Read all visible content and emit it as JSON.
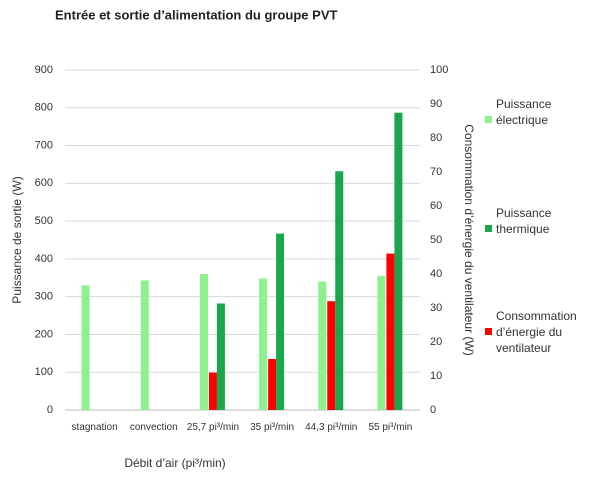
{
  "chart_data": {
    "type": "bar",
    "title": "Entrée et sortie d’alimentation du groupe PVT",
    "x_label": "Débit d’air (pi³/min)",
    "y_label": "Puissance de sortie (W)",
    "y2_label": "Consommation d’énergie du ventilateur (W)",
    "categories": [
      "stagnation",
      "convection",
      "25,7 pi³/min",
      "35 pi³/min",
      "44,3 pi³/min",
      "55 pi³/min"
    ],
    "series": [
      {
        "name": "Puissance électrique",
        "color": "#8ef08e",
        "values": [
          330,
          343,
          360,
          348,
          340,
          355
        ]
      },
      {
        "name": "Consommation d’énergie du ventilateur",
        "color": "#ff0000",
        "axis": "y2",
        "values": [
          null,
          null,
          11,
          15,
          32,
          46
        ]
      },
      {
        "name": "Puissance thermique",
        "color": "#1aa64a",
        "values": [
          null,
          null,
          282,
          467,
          632,
          787
        ]
      }
    ],
    "ylim": [
      0,
      900
    ],
    "yticks": [
      0,
      100,
      200,
      300,
      400,
      500,
      600,
      700,
      800,
      900
    ],
    "y2lim": [
      0,
      100
    ],
    "y2ticks": [
      0,
      10,
      20,
      30,
      40,
      50,
      60,
      70,
      80,
      90,
      100
    ],
    "grid": true
  }
}
